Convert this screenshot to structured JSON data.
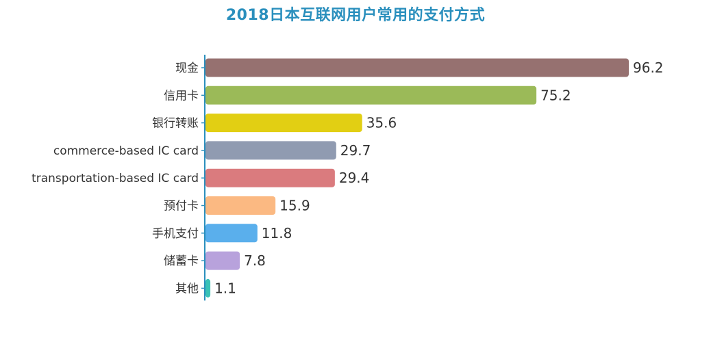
{
  "chart_data": {
    "type": "bar",
    "orientation": "horizontal",
    "title": "2018日本互联网用户常用的支付方式",
    "xlabel": "",
    "ylabel": "",
    "xlim": [
      0,
      100
    ],
    "grid": false,
    "legend": "none",
    "categories": [
      "现金",
      "信用卡",
      "银行转账",
      "commerce-based IC card",
      "transportation-based IC card",
      "预付卡",
      "手机支付",
      "储蓄卡",
      "其他"
    ],
    "values": [
      96.2,
      75.2,
      35.6,
      29.7,
      29.4,
      15.9,
      11.8,
      7.8,
      1.1
    ],
    "colors": [
      "#967170",
      "#9bba58",
      "#e2cf13",
      "#909bb1",
      "#da7b7e",
      "#fbb982",
      "#5aafec",
      "#b8a2dc",
      "#39c2b7"
    ],
    "axis_color": "#2a8fbd",
    "title_color": "#2a8fbd"
  }
}
